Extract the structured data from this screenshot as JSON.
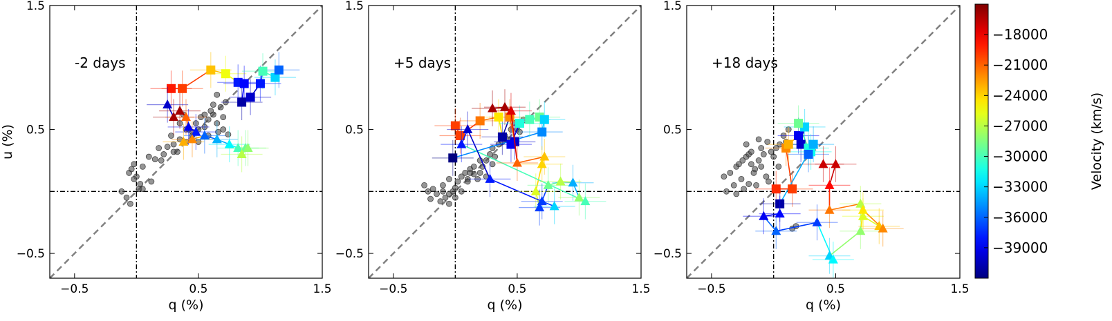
{
  "chart_data": [
    {
      "type": "scatter",
      "annotation": "-2 days",
      "xlabel": "q (%)",
      "ylabel": "u (%)",
      "xlim": [
        -0.7,
        1.5
      ],
      "ylim": [
        -0.7,
        1.5
      ],
      "xticks": [
        -0.5,
        0.5,
        1.5
      ],
      "yticks": [
        -0.5,
        0.5,
        1.5
      ],
      "xtick_labels": [
        "−0.5",
        "0.5",
        "1.5"
      ],
      "ytick_labels": [
        "−0.5",
        "0.5",
        "1.5"
      ],
      "reference_lines": {
        "dashed_slope": 1,
        "dashdot_x": 0,
        "dashdot_y": 0
      },
      "series": [
        {
          "name": "continuum (grey points)",
          "x": [
            -0.12,
            -0.06,
            -0.04,
            0.0,
            -0.02,
            0.02,
            -0.08,
            0.03,
            0.05,
            -0.02,
            0.1,
            0.15,
            0.18,
            0.22,
            0.25,
            0.3,
            0.28,
            0.33,
            0.35,
            0.4,
            0.42,
            0.45,
            0.48,
            0.5,
            0.52,
            0.55,
            0.58,
            0.6,
            0.62,
            0.65,
            0.68,
            0.7,
            0.72,
            0.35,
            0.45,
            0.55,
            0.62,
            0.7,
            0.5,
            0.4,
            0.3,
            0.58,
            0.66,
            0.74,
            0.2,
            0.12,
            0.05,
            -0.05,
            0.65,
            0.38
          ],
          "y": [
            0.0,
            0.15,
            0.18,
            0.12,
            0.22,
            0.02,
            -0.05,
            0.06,
            0.2,
            0.1,
            0.28,
            0.26,
            0.35,
            0.3,
            0.36,
            0.38,
            0.45,
            0.32,
            0.42,
            0.4,
            0.5,
            0.48,
            0.55,
            0.5,
            0.6,
            0.52,
            0.58,
            0.65,
            0.62,
            0.55,
            0.68,
            0.6,
            0.72,
            0.55,
            0.45,
            0.62,
            0.7,
            0.5,
            0.4,
            0.5,
            0.32,
            0.45,
            0.48,
            0.46,
            0.25,
            0.08,
            0.02,
            -0.1,
            0.78,
            0.62
          ]
        },
        {
          "name": "square marker track",
          "marker": "square",
          "x": [
            0.28,
            0.37,
            0.6,
            0.72,
            0.82,
            0.87,
            0.85,
            0.92,
            1.0,
            1.02,
            1.12,
            1.15
          ],
          "y": [
            0.83,
            0.83,
            0.98,
            0.95,
            0.88,
            0.87,
            0.72,
            0.76,
            0.87,
            0.97,
            0.92,
            0.98
          ],
          "velocities": [
            -19000,
            -20000,
            -23500,
            -25500,
            -38000,
            -38500,
            -41000,
            -40000,
            -38000,
            -30000,
            -33000,
            -36000
          ]
        },
        {
          "name": "triangle marker track",
          "marker": "triangle",
          "x": [
            0.25,
            0.3,
            0.35,
            0.4,
            0.42,
            0.48,
            0.45,
            0.38,
            0.55,
            0.65,
            0.75,
            0.82,
            0.88,
            0.9,
            0.85
          ],
          "y": [
            0.7,
            0.6,
            0.65,
            0.6,
            0.52,
            0.48,
            0.42,
            0.4,
            0.45,
            0.42,
            0.38,
            0.35,
            0.35,
            0.35,
            0.3
          ],
          "velocities": [
            -40000,
            -16000,
            -16000,
            -21000,
            -39000,
            -38000,
            -22000,
            -23000,
            -36000,
            -34000,
            -32000,
            -30000,
            -29000,
            -28000,
            -27000
          ]
        }
      ]
    },
    {
      "type": "scatter",
      "annotation": "+5 days",
      "xlabel": "q (%)",
      "ylabel": "",
      "xlim": [
        -0.7,
        1.5
      ],
      "ylim": [
        -0.7,
        1.5
      ],
      "xticks": [
        -0.5,
        0.5,
        1.5
      ],
      "yticks": [
        -0.5,
        0.5,
        1.5
      ],
      "xtick_labels": [
        "−0.5",
        "0.5",
        "1.5"
      ],
      "ytick_labels": [
        "−0.5",
        "0.5",
        "1.5"
      ],
      "reference_lines": {
        "dashed_slope": 1,
        "dashdot_x": 0,
        "dashdot_y": 0
      },
      "series": [
        {
          "name": "continuum (grey points)",
          "x": [
            -0.25,
            -0.22,
            -0.18,
            -0.15,
            -0.1,
            -0.08,
            -0.05,
            -0.02,
            0.0,
            0.02,
            -0.12,
            -0.2,
            -0.1,
            -0.05,
            0.05,
            0.08,
            0.1,
            0.12,
            0.15,
            0.2,
            0.22,
            0.25,
            0.28,
            0.3,
            0.32,
            0.35,
            0.38,
            0.4,
            0.42,
            0.45,
            0.48,
            0.5,
            0.52,
            0.55,
            0.2,
            0.15,
            0.1,
            0.05,
            -0.05,
            0.0,
            0.25,
            0.3,
            0.18,
            0.12
          ],
          "y": [
            0.05,
            0.0,
            0.02,
            -0.02,
            0.0,
            -0.05,
            -0.02,
            0.0,
            0.03,
            0.08,
            -0.08,
            -0.06,
            0.05,
            0.1,
            0.12,
            0.15,
            0.1,
            0.18,
            0.14,
            0.15,
            0.2,
            0.25,
            0.3,
            0.35,
            0.28,
            0.38,
            0.4,
            0.45,
            0.42,
            0.5,
            0.55,
            0.5,
            0.48,
            0.58,
            0.25,
            0.2,
            0.08,
            0.0,
            -0.1,
            -0.05,
            0.12,
            0.22,
            0.1,
            0.15
          ]
        },
        {
          "name": "square marker track",
          "marker": "square",
          "x": [
            0.0,
            0.04,
            0.2,
            0.35,
            0.38,
            0.44,
            0.48,
            0.45,
            0.52,
            0.6,
            0.68,
            0.72,
            0.7,
            -0.02
          ],
          "y": [
            0.53,
            0.45,
            0.57,
            0.6,
            0.44,
            0.6,
            0.4,
            0.38,
            0.55,
            0.58,
            0.6,
            0.58,
            0.48,
            0.27
          ],
          "velocities": [
            -20000,
            -20000,
            -21500,
            -24500,
            -41000,
            -22000,
            -40000,
            -39000,
            -31000,
            -30000,
            -29000,
            -33000,
            -35000,
            -42000
          ]
        },
        {
          "name": "triangle marker track",
          "marker": "triangle",
          "x": [
            0.3,
            0.4,
            0.45,
            0.5,
            0.72,
            0.7,
            0.65,
            0.68,
            0.75,
            0.85,
            0.95,
            1.0,
            1.05,
            0.05,
            0.1,
            0.28,
            0.7,
            0.8
          ],
          "y": [
            0.67,
            0.68,
            0.65,
            0.23,
            0.28,
            0.22,
            0.0,
            -0.13,
            0.05,
            0.08,
            0.07,
            -0.05,
            -0.08,
            0.38,
            0.5,
            0.1,
            -0.08,
            -0.12
          ],
          "velocities": [
            -16000,
            -16000,
            -17500,
            -21000,
            -23500,
            -24000,
            -26000,
            -37000,
            -29000,
            -27000,
            -34000,
            -28000,
            -30000,
            -38000,
            -40000,
            -38000,
            -37000,
            -33000
          ]
        }
      ]
    },
    {
      "type": "scatter",
      "annotation": "+18 days",
      "xlabel": "q (%)",
      "ylabel": "",
      "xlim": [
        -0.7,
        1.5
      ],
      "ylim": [
        -0.7,
        1.5
      ],
      "xticks": [
        -0.5,
        0.5,
        1.5
      ],
      "yticks": [
        -0.5,
        0.5,
        1.5
      ],
      "xtick_labels": [
        "−0.5",
        "0.5",
        "1.5"
      ],
      "ytick_labels": [
        "−0.5",
        "0.5",
        "1.5"
      ],
      "reference_lines": {
        "dashed_slope": 1,
        "dashdot_x": 0,
        "dashdot_y": 0
      },
      "series": [
        {
          "name": "continuum (grey points)",
          "x": [
            -0.4,
            -0.35,
            -0.3,
            -0.28,
            -0.25,
            -0.22,
            -0.2,
            -0.18,
            -0.15,
            -0.12,
            -0.1,
            -0.08,
            -0.05,
            -0.02,
            0.0,
            0.02,
            0.05,
            0.08,
            0.1,
            -0.32,
            -0.26,
            -0.16,
            -0.06,
            -0.24,
            -0.14,
            -0.04,
            -0.18,
            -0.1,
            0.04,
            -0.38,
            -0.3,
            -0.2,
            0.12,
            0.15,
            0.18,
            -0.12,
            -0.22
          ],
          "y": [
            0.12,
            0.15,
            0.2,
            0.22,
            0.25,
            0.28,
            0.3,
            0.22,
            0.18,
            0.25,
            0.35,
            0.3,
            0.4,
            0.32,
            0.28,
            0.35,
            0.38,
            0.45,
            0.4,
            0.05,
            0.1,
            0.15,
            0.12,
            0.02,
            0.05,
            0.08,
            0.32,
            0.2,
            0.2,
            0.0,
            -0.02,
            0.06,
            0.5,
            -0.3,
            -0.28,
            0.42,
            0.38
          ]
        },
        {
          "name": "square marker track",
          "marker": "square",
          "x": [
            0.02,
            0.15,
            0.1,
            0.12,
            0.2,
            0.22,
            0.25,
            0.2,
            0.28,
            0.3,
            0.28,
            0.32,
            0.05
          ],
          "y": [
            0.02,
            0.02,
            0.35,
            0.38,
            0.45,
            0.38,
            0.52,
            0.55,
            0.35,
            0.32,
            0.3,
            0.38,
            -0.1
          ],
          "velocities": [
            -19500,
            -20000,
            -22000,
            -23000,
            -39000,
            -40000,
            -33000,
            -29000,
            -31000,
            -31500,
            -36000,
            -34000,
            -41000
          ]
        },
        {
          "name": "triangle marker track",
          "marker": "triangle",
          "x": [
            0.4,
            0.5,
            0.45,
            0.45,
            0.7,
            0.72,
            0.85,
            0.88,
            0.72,
            0.7,
            0.45,
            0.48,
            0.35,
            0.02,
            -0.08,
            0.05
          ],
          "y": [
            0.22,
            0.22,
            0.05,
            -0.15,
            -0.1,
            -0.2,
            -0.28,
            -0.3,
            -0.15,
            -0.32,
            -0.52,
            -0.55,
            -0.25,
            -0.32,
            -0.2,
            -0.18
          ],
          "velocities": [
            -17000,
            -17000,
            -18500,
            -21500,
            -27000,
            -26000,
            -23500,
            -22000,
            -24500,
            -28000,
            -33000,
            -32000,
            -37000,
            -36000,
            -39000,
            -38500
          ]
        }
      ]
    }
  ],
  "colorbar": {
    "label": "Velocity (km/s)",
    "vmin": -42000,
    "vmax": -15000,
    "ticks": [
      -18000,
      -21000,
      -24000,
      -27000,
      -30000,
      -33000,
      -36000,
      -39000
    ],
    "tick_labels": [
      "−18000",
      "−21000",
      "−24000",
      "−27000",
      "−30000",
      "−33000",
      "−36000",
      "−39000"
    ],
    "colormap": "jet"
  }
}
